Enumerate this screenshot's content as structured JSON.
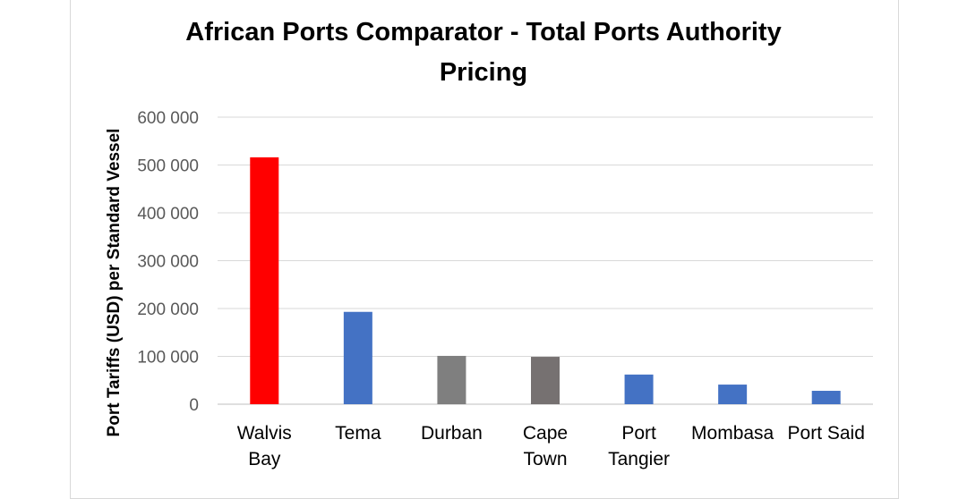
{
  "chart_data": {
    "type": "bar",
    "title_lines": [
      "African Ports Comparator - Total Ports Authority",
      "Pricing"
    ],
    "xlabel": "",
    "ylabel": "Port Tariffs (USD) per Standard Vessel",
    "ylim": [
      0,
      600000
    ],
    "yticks": [
      0,
      100000,
      200000,
      300000,
      400000,
      500000,
      600000
    ],
    "ytick_labels": [
      "0",
      "100 000",
      "200 000",
      "300 000",
      "400 000",
      "500 000",
      "600 000"
    ],
    "grid": true,
    "legend": "none",
    "categories": [
      [
        "Walvis",
        "Bay"
      ],
      [
        "Tema"
      ],
      [
        "Durban"
      ],
      [
        "Cape",
        "Town"
      ],
      [
        "Port",
        "Tangier"
      ],
      [
        "Mombasa"
      ],
      [
        "Port Said"
      ]
    ],
    "values": [
      516000,
      193000,
      101000,
      99000,
      62000,
      41000,
      28000
    ],
    "colors": [
      "#ff0000",
      "#4472c4",
      "#7f7f7f",
      "#767171",
      "#4472c4",
      "#4472c4",
      "#4472c4"
    ]
  }
}
